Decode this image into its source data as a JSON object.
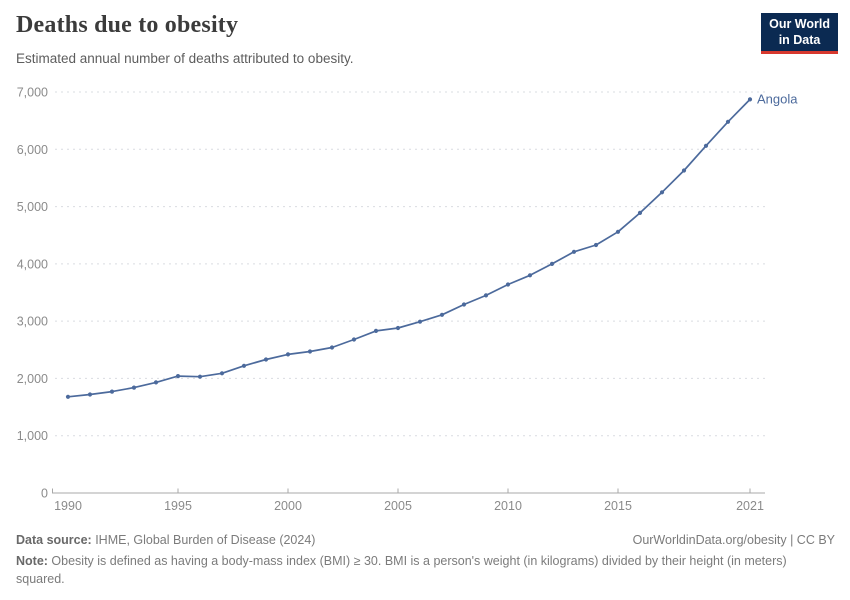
{
  "header": {
    "title": "Deaths due to obesity",
    "subtitle": "Estimated annual number of deaths attributed to obesity."
  },
  "logo": {
    "line1": "Our World",
    "line2": "in Data",
    "bg_color": "#0b2a52",
    "accent_color": "#d7382e"
  },
  "chart_data": {
    "type": "line",
    "title": "Deaths due to obesity",
    "subtitle": "Estimated annual number of deaths attributed to obesity.",
    "x": [
      1990,
      1991,
      1992,
      1993,
      1994,
      1995,
      1996,
      1997,
      1998,
      1999,
      2000,
      2001,
      2002,
      2003,
      2004,
      2005,
      2006,
      2007,
      2008,
      2009,
      2010,
      2011,
      2012,
      2013,
      2014,
      2015,
      2016,
      2017,
      2018,
      2019,
      2020,
      2021
    ],
    "series": [
      {
        "name": "Angola",
        "color": "#4c6a9c",
        "values": [
          1680,
          1720,
          1770,
          1840,
          1930,
          2040,
          2030,
          2090,
          2220,
          2330,
          2420,
          2470,
          2540,
          2680,
          2830,
          2880,
          2990,
          3110,
          3290,
          3450,
          3640,
          3800,
          4000,
          4210,
          4330,
          4560,
          4890,
          5250,
          5630,
          6060,
          6480,
          6870
        ]
      }
    ],
    "x_ticks": [
      1990,
      1995,
      2000,
      2005,
      2010,
      2015,
      2021
    ],
    "y_ticks": [
      0,
      1000,
      2000,
      3000,
      4000,
      5000,
      6000,
      7000
    ],
    "xlim": [
      1990,
      2021
    ],
    "ylim": [
      0,
      7000
    ],
    "grid": "horizontal-dashed",
    "legend_position": "end-of-line-label",
    "axis_color": "#a8a8a8",
    "grid_color": "#d9dce1",
    "tick_label_color": "#8b8b8b"
  },
  "footer": {
    "source_label": "Data source:",
    "source_text": " IHME, Global Burden of Disease (2024)",
    "link_text": "OurWorldinData.org/obesity | CC BY",
    "note_label": "Note:",
    "note_text": " Obesity is defined as having a body-mass index (BMI) ≥ 30. BMI is a person's weight (in kilograms) divided by their height (in meters) squared."
  }
}
